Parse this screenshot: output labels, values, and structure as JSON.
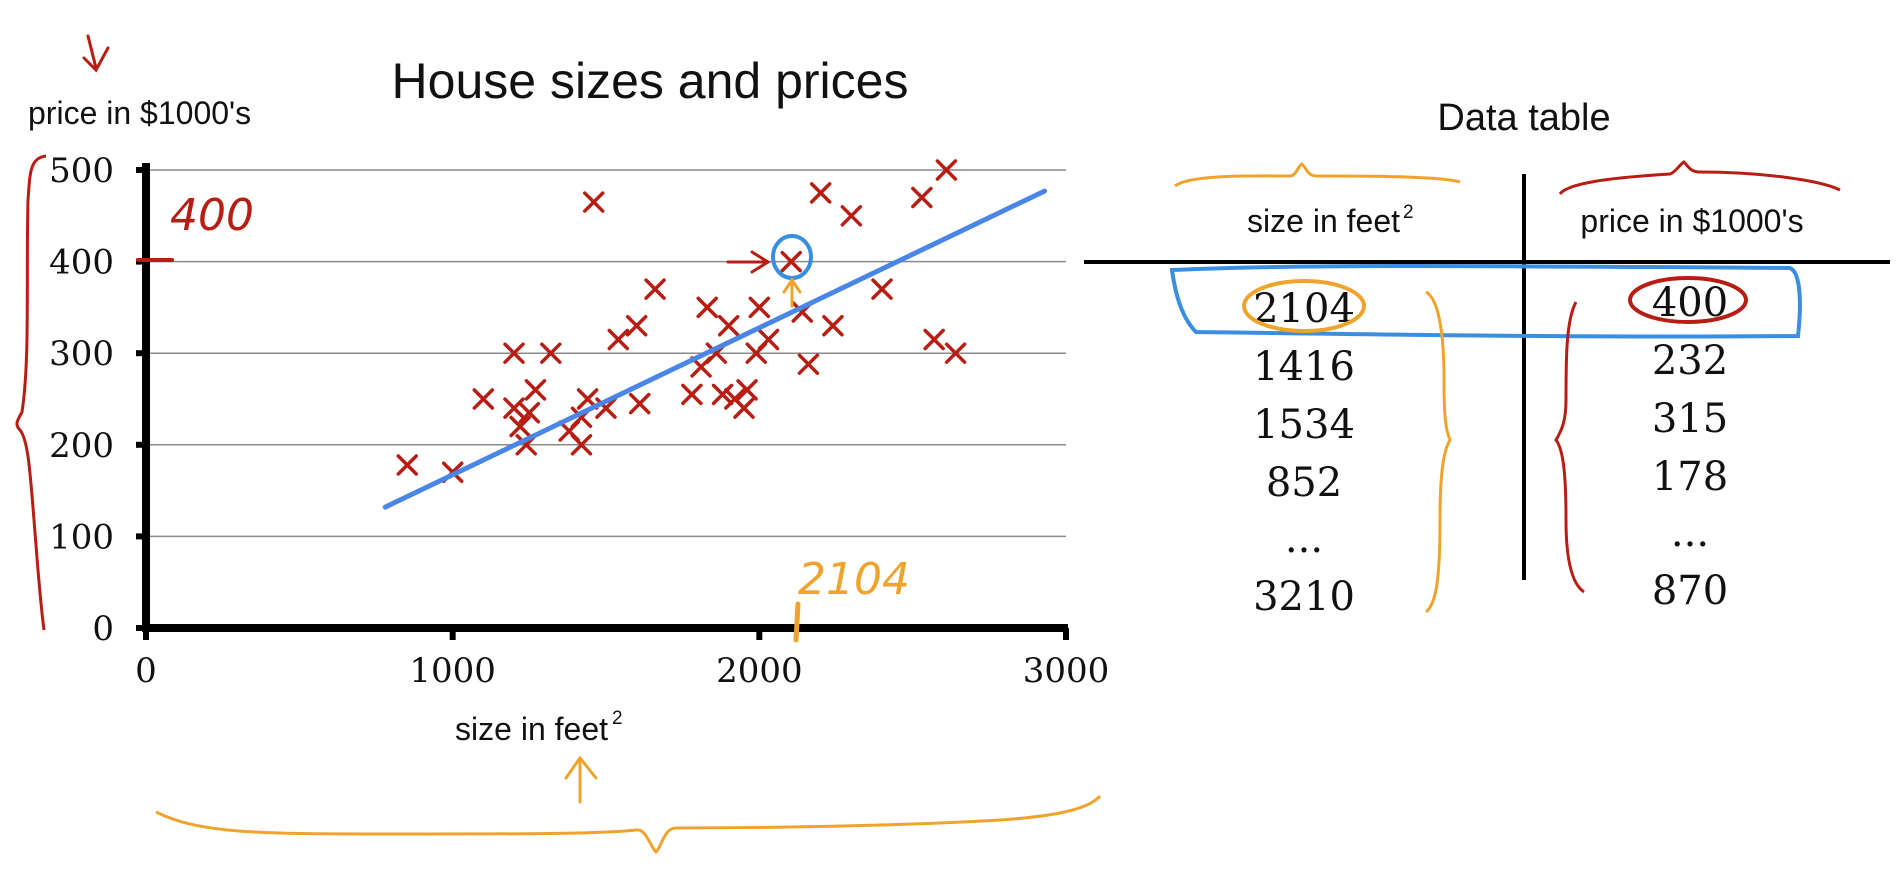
{
  "chart_data": {
    "type": "scatter",
    "title": "House sizes and prices",
    "xlabel": "size in feet",
    "xlabel_sup": "2",
    "ylabel": "price in $1000's",
    "xlim": [
      0,
      3000
    ],
    "ylim": [
      0,
      500
    ],
    "x_ticks": [
      "0",
      "1000",
      "2000",
      "3000"
    ],
    "y_ticks": [
      "0",
      "100",
      "200",
      "300",
      "400",
      "500"
    ],
    "grid": true,
    "points": [
      [
        852,
        178
      ],
      [
        1000,
        170
      ],
      [
        1100,
        250
      ],
      [
        1200,
        300
      ],
      [
        1200,
        240
      ],
      [
        1220,
        220
      ],
      [
        1240,
        200
      ],
      [
        1250,
        235
      ],
      [
        1270,
        260
      ],
      [
        1320,
        300
      ],
      [
        1380,
        215
      ],
      [
        1420,
        200
      ],
      [
        1420,
        230
      ],
      [
        1440,
        250
      ],
      [
        1460,
        465
      ],
      [
        1500,
        240
      ],
      [
        1540,
        315
      ],
      [
        1600,
        330
      ],
      [
        1610,
        245
      ],
      [
        1660,
        370
      ],
      [
        1780,
        255
      ],
      [
        1810,
        285
      ],
      [
        1830,
        350
      ],
      [
        1860,
        300
      ],
      [
        1880,
        255
      ],
      [
        1900,
        330
      ],
      [
        1920,
        250
      ],
      [
        1950,
        240
      ],
      [
        1960,
        260
      ],
      [
        1990,
        300
      ],
      [
        2000,
        350
      ],
      [
        2030,
        315
      ],
      [
        2104,
        400
      ],
      [
        2140,
        345
      ],
      [
        2160,
        288
      ],
      [
        2200,
        475
      ],
      [
        2240,
        330
      ],
      [
        2300,
        450
      ],
      [
        2400,
        370
      ],
      [
        2530,
        470
      ],
      [
        2570,
        315
      ],
      [
        2610,
        500
      ],
      [
        2640,
        300
      ]
    ],
    "series": [
      {
        "values": [
          [
            780,
            132
          ],
          [
            2930,
            477
          ]
        ]
      }
    ],
    "colors": {
      "points": "#b81d13",
      "line": "#4a86e8"
    }
  },
  "annotations": {
    "y_marker": "400",
    "x_marker": "2104"
  },
  "table": {
    "title": "Data table",
    "col1_header": "size in feet",
    "col1_sup": "2",
    "col2_header": "price in $1000's",
    "col1_values": [
      "2104",
      "1416",
      "1534",
      "852",
      "...",
      "3210"
    ],
    "col2_values": [
      "400",
      "232",
      "315",
      "178",
      "...",
      "870"
    ]
  },
  "colors": {
    "annotation_red": "#b81d13",
    "annotation_orange": "#f0a32c",
    "highlight_blue": "#3a8edf"
  }
}
